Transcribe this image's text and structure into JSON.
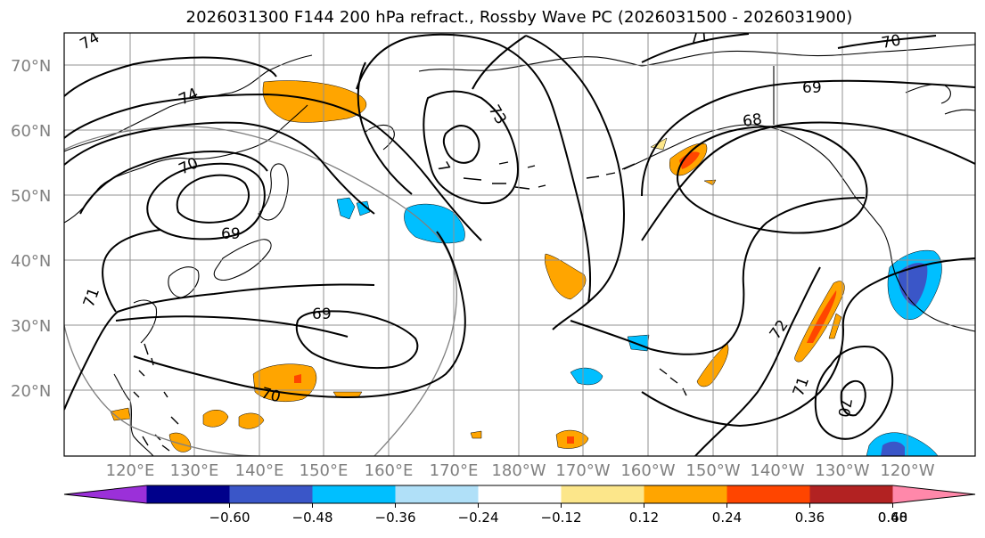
{
  "title": "2026031300 F144 200 hPa refract., Rossby Wave PC (2026031500 - 2026031900)",
  "lat_labels": [
    "70°N",
    "60°N",
    "50°N",
    "40°N",
    "30°N",
    "20°N"
  ],
  "lon_labels": [
    "120°E",
    "130°E",
    "140°E",
    "150°E",
    "160°E",
    "170°E",
    "180°W",
    "170°W",
    "160°W",
    "150°W",
    "140°W",
    "130°W",
    "120°W"
  ],
  "colorbar": {
    "colors": [
      "#9b30d9",
      "#00008b",
      "#3a56c8",
      "#00bfff",
      "#b0e0f8",
      "#ffffff",
      "#fce68a",
      "#ffa500",
      "#ff4500",
      "#b22222",
      "#ff88aa"
    ],
    "tick_labels": [
      "−0.60",
      "−0.48",
      "−0.36",
      "−0.24",
      "−0.12",
      "0.12",
      "0.24",
      "0.36",
      "0.48",
      "0.60"
    ]
  },
  "contour_labels": {
    "c74_nw": "74",
    "c74_w": "74",
    "c71_top": "71",
    "c70_ne": "70",
    "c69_ne": "69",
    "c68": "68",
    "c73": "73",
    "c7_small": "7",
    "c70_w": "70",
    "c69_w": "69",
    "c71_w": "71",
    "c69_mid": "69",
    "c70_s": "70",
    "c72_e": "72",
    "c71_e": "71",
    "c70_e": "70"
  },
  "colors": {
    "contour": "#000000",
    "grid": "#909090",
    "coast": "#000000",
    "circle": "#808080"
  }
}
